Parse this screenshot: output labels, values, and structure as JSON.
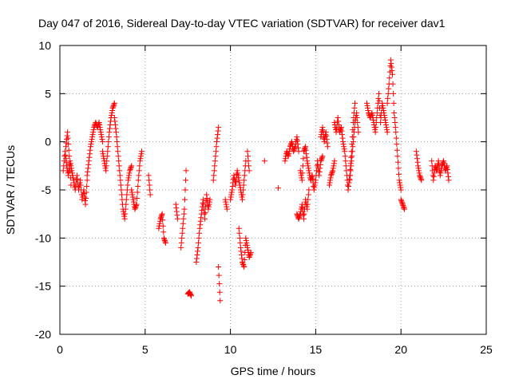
{
  "chart_data": {
    "type": "scatter",
    "title": "Day 047 of 2016, Sidereal Day-to-day VTEC variation (SDTVAR) for receiver dav1",
    "xlabel": "GPS time / hours",
    "ylabel": "SDTVAR / TECUs",
    "xlim": [
      0,
      25
    ],
    "ylim": [
      -20,
      10
    ],
    "x_ticks": [
      0,
      5,
      10,
      15,
      20,
      25
    ],
    "y_ticks": [
      -20,
      -15,
      -10,
      -5,
      0,
      5,
      10
    ],
    "x_tick_labels": [
      "0",
      "5",
      "10",
      "15",
      "20",
      "25"
    ],
    "y_tick_labels": [
      "-20",
      "-15",
      "-10",
      "-5",
      "0",
      "5",
      "10"
    ],
    "grid": true,
    "marker": "+",
    "series": [
      {
        "name": "SDTVAR",
        "color": "#ff0000",
        "segments": [
          {
            "x": [
              0.2,
              0.3,
              0.4,
              0.5,
              0.6,
              0.7,
              0.8,
              0.9,
              1.0,
              1.1,
              1.2,
              1.3,
              1.4,
              1.5,
              1.6
            ],
            "y": [
              -3,
              -1,
              -2.5,
              -3.5,
              -2,
              -3,
              -4,
              -5,
              -3.5,
              -5,
              -4,
              -6,
              -5,
              -6.5,
              -4
            ]
          },
          {
            "x": [
              0.35,
              0.45,
              0.55,
              0.65
            ],
            "y": [
              -0.5,
              1,
              -1.5,
              -4.5
            ]
          },
          {
            "x": [
              1.6,
              1.7,
              1.8,
              1.9,
              2.0,
              2.1,
              2.2,
              2.3,
              2.4,
              2.5
            ],
            "y": [
              -3.5,
              -2,
              -0.5,
              0.5,
              1.5,
              2,
              1.5,
              2,
              1,
              0
            ]
          },
          {
            "x": [
              2.5,
              2.6,
              2.7,
              2.8,
              2.9,
              3.0,
              3.1,
              3.2
            ],
            "y": [
              -1,
              -2,
              -3,
              -1,
              1,
              2.5,
              3.5,
              4
            ]
          },
          {
            "x": [
              3.2,
              3.3,
              3.4,
              3.5,
              3.6,
              3.7,
              3.8,
              3.9,
              4.0,
              4.1,
              4.2
            ],
            "y": [
              2.5,
              1,
              -1,
              -3,
              -5,
              -7,
              -8,
              -6,
              -4,
              -3,
              -2.5
            ]
          },
          {
            "x": [
              4.2,
              4.3,
              4.4,
              4.5,
              4.6,
              4.7,
              4.8
            ],
            "y": [
              -5,
              -6,
              -7,
              -6.5,
              -4,
              -2,
              -1
            ]
          },
          {
            "x": [
              5.2,
              5.3
            ],
            "y": [
              -3.5,
              -5.5
            ]
          },
          {
            "x": [
              5.8,
              5.9,
              6.0,
              6.1,
              6.2
            ],
            "y": [
              -9,
              -8,
              -7.5,
              -10,
              -10.5
            ]
          },
          {
            "x": [
              6.8,
              6.9
            ],
            "y": [
              -6.5,
              -8
            ]
          },
          {
            "x": [
              7.1,
              7.2,
              7.3,
              7.4
            ],
            "y": [
              -11,
              -9,
              -7,
              -3
            ]
          },
          {
            "x": [
              7.5,
              7.6,
              7.7
            ],
            "y": [
              -15.8,
              -15.6,
              -16
            ]
          },
          {
            "x": [
              8.0,
              8.1,
              8.2,
              8.3,
              8.4,
              8.5,
              8.6,
              8.7,
              8.8
            ],
            "y": [
              -12.5,
              -11,
              -9,
              -7.5,
              -6,
              -8,
              -5.5,
              -7,
              -6
            ]
          },
          {
            "x": [
              9.0,
              9.1,
              9.2,
              9.3
            ],
            "y": [
              -4,
              -2,
              0,
              1.5
            ]
          },
          {
            "x": [
              9.3,
              9.4
            ],
            "y": [
              -13,
              -16.5
            ]
          },
          {
            "x": [
              9.7,
              9.8
            ],
            "y": [
              -6,
              -7
            ]
          },
          {
            "x": [
              10.0,
              10.1,
              10.2,
              10.3,
              10.4,
              10.5,
              10.6,
              10.7,
              10.8,
              10.9
            ],
            "y": [
              -6,
              -5,
              -3.5,
              -4.5,
              -3,
              -4,
              -5,
              -6,
              -4,
              -2
            ]
          },
          {
            "x": [
              10.5,
              10.6,
              10.7,
              10.8,
              10.9,
              11.0,
              11.1,
              11.2
            ],
            "y": [
              -9,
              -11,
              -12.5,
              -13,
              -10,
              -11,
              -12,
              -11.5
            ]
          },
          {
            "x": [
              11.0,
              11.1
            ],
            "y": [
              -1,
              -3
            ]
          },
          {
            "x": [
              12.0
            ],
            "y": [
              -2
            ]
          },
          {
            "x": [
              12.8
            ],
            "y": [
              -4.8
            ]
          },
          {
            "x": [
              13.2,
              13.3,
              13.4,
              13.5,
              13.6,
              13.7,
              13.8,
              13.9,
              14.0
            ],
            "y": [
              -2,
              -1,
              -1.5,
              -0.5,
              0,
              -1,
              -0.5,
              0.5,
              -1
            ]
          },
          {
            "x": [
              13.9,
              14.0,
              14.1,
              14.2,
              14.3,
              14.4,
              14.5,
              14.6
            ],
            "y": [
              -7.5,
              -8,
              -7.5,
              -6.5,
              -8,
              -6,
              -7,
              -5
            ]
          },
          {
            "x": [
              14.1,
              14.2,
              14.3,
              14.4,
              14.5,
              14.6,
              14.7,
              14.8,
              14.9,
              15.0,
              15.1,
              15.2,
              15.3,
              15.4
            ],
            "y": [
              -3,
              -4,
              -1,
              -0.5,
              -2,
              -3,
              -4,
              -3.5,
              -5,
              -4,
              -2,
              -3.5,
              -2,
              -1.5
            ]
          },
          {
            "x": [
              15.3,
              15.4,
              15.5,
              15.6,
              15.7
            ],
            "y": [
              0.5,
              1.5,
              0,
              1,
              -0.5
            ]
          },
          {
            "x": [
              15.8,
              15.9,
              16.0,
              16.1
            ],
            "y": [
              -4.5,
              -3.5,
              -3,
              -2
            ]
          },
          {
            "x": [
              16.1,
              16.2,
              16.3,
              16.4,
              16.5,
              16.6,
              16.7,
              16.8,
              16.9,
              17.0,
              17.1,
              17.2,
              17.3
            ],
            "y": [
              2,
              1,
              2.5,
              1,
              1.5,
              0,
              -1,
              -3,
              -5,
              -3.5,
              -1,
              2,
              4
            ]
          },
          {
            "x": [
              17.0,
              17.1,
              17.2,
              17.3,
              17.4,
              17.5
            ],
            "y": [
              -4,
              -2,
              0,
              2,
              3,
              1
            ]
          },
          {
            "x": [
              18.0,
              18.1,
              18.2,
              18.3,
              18.4,
              18.5,
              18.6,
              18.7,
              18.8,
              18.9,
              19.0,
              19.1,
              19.2
            ],
            "y": [
              4,
              3,
              2.5,
              3,
              2,
              1,
              3,
              5,
              2,
              4,
              3,
              2,
              1
            ]
          },
          {
            "x": [
              19.2,
              19.3,
              19.4,
              19.5,
              19.6,
              19.7,
              19.8,
              19.9,
              20.0
            ],
            "y": [
              4,
              6,
              8.5,
              7,
              3,
              1,
              -1.5,
              -4,
              -5
            ]
          },
          {
            "x": [
              20.0,
              20.1,
              20.2
            ],
            "y": [
              -6,
              -6.5,
              -7
            ]
          },
          {
            "x": [
              20.9,
              21.0,
              21.1,
              21.2
            ],
            "y": [
              -1,
              -2.5,
              -3.5,
              -4
            ]
          },
          {
            "x": [
              21.8,
              21.9,
              22.0,
              22.1,
              22.2,
              22.3,
              22.4,
              22.5,
              22.6,
              22.7,
              22.8
            ],
            "y": [
              -2,
              -4,
              -2.5,
              -3,
              -2,
              -3.5,
              -2.5,
              -2,
              -3,
              -2.5,
              -4
            ]
          }
        ]
      }
    ]
  }
}
